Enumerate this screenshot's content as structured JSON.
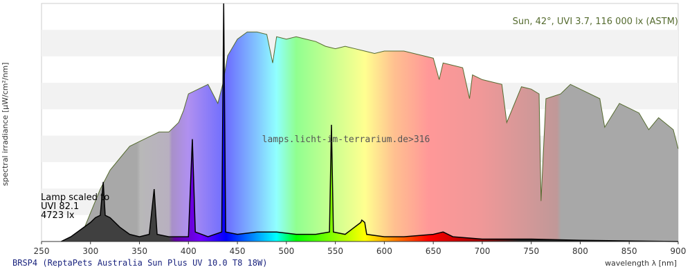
{
  "chart_data": {
    "type": "area",
    "title": "BRSP4 (ReptaPets Australia Sun Plus UV 10.0 T8 18W)",
    "xlabel": "wavelength λ [nm]",
    "ylabel": "spectral irradiance [µW/cm²/nm]",
    "watermark": "lamps.licht-im-terrarium.de>316",
    "annotation": [
      "Lamp scaled to",
      "UVI 82.1",
      "4723 lx"
    ],
    "xlim": [
      250,
      900
    ],
    "ylim": [
      0,
      100
    ],
    "xticks": [
      250,
      300,
      350,
      400,
      450,
      500,
      550,
      600,
      650,
      700,
      750,
      800,
      850,
      900
    ],
    "grid": true,
    "series": [
      {
        "name": "Sun, 42°, UVI 3.7, 116 000 lx (ASTM)",
        "color": "#556b2f",
        "x": [
          280,
          290,
          300,
          310,
          320,
          330,
          340,
          350,
          360,
          370,
          380,
          390,
          395,
          400,
          410,
          420,
          430,
          435,
          440,
          450,
          460,
          470,
          480,
          486,
          490,
          500,
          510,
          520,
          530,
          540,
          550,
          560,
          570,
          580,
          590,
          600,
          620,
          640,
          650,
          656,
          660,
          680,
          687,
          690,
          700,
          720,
          725,
          740,
          750,
          758,
          760,
          765,
          780,
          790,
          800,
          820,
          825,
          840,
          860,
          870,
          880,
          895,
          900
        ],
        "values": [
          0,
          2,
          12,
          22,
          30,
          35,
          40,
          42,
          44,
          46,
          46,
          50,
          55,
          62,
          64,
          66,
          58,
          66,
          78,
          85,
          88,
          88,
          87,
          75,
          86,
          85,
          86,
          85,
          84,
          82,
          81,
          82,
          81,
          80,
          79,
          80,
          80,
          78,
          77,
          68,
          75,
          73,
          60,
          70,
          68,
          66,
          50,
          65,
          64,
          62,
          17,
          60,
          62,
          66,
          64,
          60,
          48,
          58,
          54,
          47,
          52,
          47,
          39
        ]
      },
      {
        "name": "BRSP4",
        "color": "#000000",
        "x": [
          270,
          280,
          290,
          300,
          305,
          310,
          313,
          315,
          320,
          330,
          340,
          350,
          360,
          365,
          368,
          380,
          400,
          404,
          407,
          420,
          434,
          436,
          438,
          450,
          470,
          490,
          510,
          530,
          544,
          546,
          548,
          560,
          576,
          577,
          580,
          582,
          600,
          620,
          650,
          660,
          670,
          700,
          750,
          800,
          900
        ],
        "values": [
          0,
          2,
          5,
          8,
          10,
          11,
          25,
          11,
          10,
          6,
          3,
          2,
          3,
          22,
          3,
          2,
          2,
          43,
          4,
          2,
          4,
          100,
          4,
          3,
          4,
          4,
          3,
          3,
          4,
          49,
          4,
          3,
          8,
          9,
          8,
          3,
          2,
          2,
          3,
          4,
          2,
          1,
          1,
          0.5,
          0
        ]
      }
    ]
  }
}
